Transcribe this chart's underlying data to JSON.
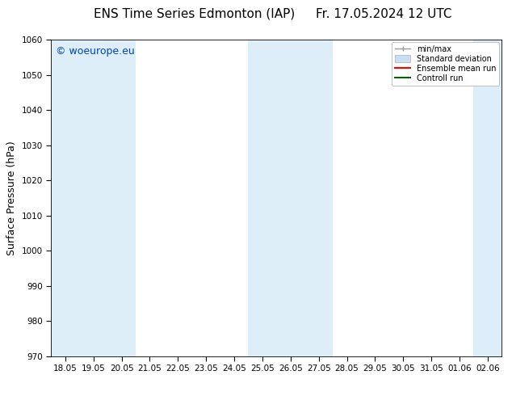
{
  "title_left": "ENS Time Series Edmonton (IAP)",
  "title_right": "Fr. 17.05.2024 12 UTC",
  "ylabel": "Surface Pressure (hPa)",
  "ylim": [
    970,
    1060
  ],
  "yticks": [
    970,
    980,
    990,
    1000,
    1010,
    1020,
    1030,
    1040,
    1050,
    1060
  ],
  "xtick_labels": [
    "18.05",
    "19.05",
    "20.05",
    "21.05",
    "22.05",
    "23.05",
    "24.05",
    "25.05",
    "26.05",
    "27.05",
    "28.05",
    "29.05",
    "30.05",
    "31.05",
    "01.06",
    "02.06"
  ],
  "watermark": "© woeurope.eu",
  "watermark_color": "#0044bb",
  "bg_color": "#ffffff",
  "shade_color": "#ddeef8",
  "shaded_x_indices": [
    0,
    1,
    2,
    7,
    8,
    9,
    15
  ],
  "legend_entries": [
    {
      "label": "min/max",
      "color": "#999999"
    },
    {
      "label": "Standard deviation",
      "color": "#c8dff0"
    },
    {
      "label": "Ensemble mean run",
      "color": "#ff0000"
    },
    {
      "label": "Controll run",
      "color": "#006600"
    }
  ],
  "title_fontsize": 11,
  "tick_fontsize": 7.5,
  "ylabel_fontsize": 9,
  "watermark_fontsize": 9
}
